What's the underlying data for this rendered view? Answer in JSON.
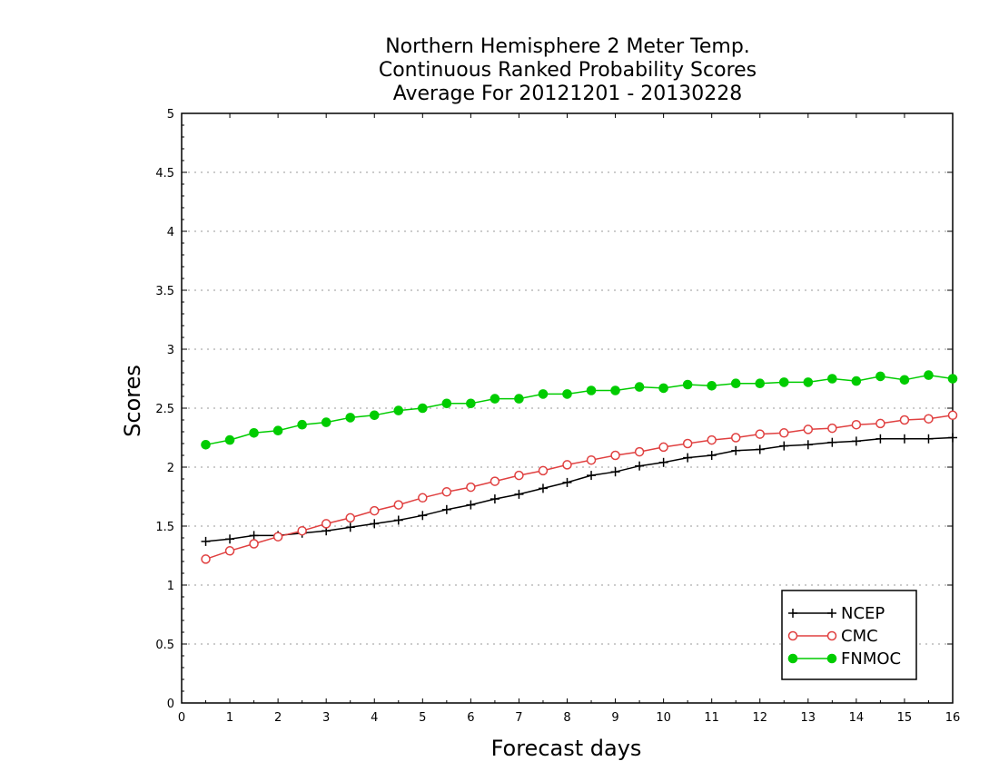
{
  "chart_data": {
    "type": "line",
    "title_lines": [
      "Northern Hemisphere 2 Meter Temp.",
      "Continuous Ranked Probability Scores",
      "Average For 20121201 - 20130228"
    ],
    "xlabel": "Forecast days",
    "ylabel": "Scores",
    "xlim": [
      0,
      16
    ],
    "ylim": [
      0,
      5
    ],
    "xticks": [
      "0",
      "1",
      "2",
      "3",
      "4",
      "5",
      "6",
      "7",
      "8",
      "9",
      "10",
      "11",
      "12",
      "13",
      "14",
      "15",
      "16"
    ],
    "yticks": [
      "0",
      "0.5",
      "1",
      "1.5",
      "2",
      "2.5",
      "3",
      "3.5",
      "4",
      "4.5",
      "5"
    ],
    "grid": "horizontal-dotted",
    "legend_position": "bottom-right",
    "x": [
      0.5,
      1,
      1.5,
      2,
      2.5,
      3,
      3.5,
      4,
      4.5,
      5,
      5.5,
      6,
      6.5,
      7,
      7.5,
      8,
      8.5,
      9,
      9.5,
      10,
      10.5,
      11,
      11.5,
      12,
      12.5,
      13,
      13.5,
      14,
      14.5,
      15,
      15.5,
      16
    ],
    "series": [
      {
        "name": "NCEP",
        "color": "#000000",
        "marker": "plus",
        "values": [
          1.37,
          1.39,
          1.42,
          1.42,
          1.44,
          1.46,
          1.49,
          1.52,
          1.55,
          1.59,
          1.64,
          1.68,
          1.73,
          1.77,
          1.82,
          1.87,
          1.93,
          1.96,
          2.01,
          2.04,
          2.08,
          2.1,
          2.14,
          2.15,
          2.18,
          2.19,
          2.21,
          2.22,
          2.24,
          2.24,
          2.24,
          2.25
        ]
      },
      {
        "name": "CMC",
        "color": "#e04040",
        "marker": "open-circle",
        "values": [
          1.22,
          1.29,
          1.35,
          1.41,
          1.46,
          1.52,
          1.57,
          1.63,
          1.68,
          1.74,
          1.79,
          1.83,
          1.88,
          1.93,
          1.97,
          2.02,
          2.06,
          2.1,
          2.13,
          2.17,
          2.2,
          2.23,
          2.25,
          2.28,
          2.29,
          2.32,
          2.33,
          2.36,
          2.37,
          2.4,
          2.41,
          2.44
        ]
      },
      {
        "name": "FNMOC",
        "color": "#00cc00",
        "marker": "filled-circle",
        "values": [
          2.19,
          2.23,
          2.29,
          2.31,
          2.36,
          2.38,
          2.42,
          2.44,
          2.48,
          2.5,
          2.54,
          2.54,
          2.58,
          2.58,
          2.62,
          2.62,
          2.65,
          2.65,
          2.68,
          2.67,
          2.7,
          2.69,
          2.71,
          2.71,
          2.72,
          2.72,
          2.75,
          2.73,
          2.77,
          2.74,
          2.78,
          2.75
        ]
      }
    ]
  }
}
